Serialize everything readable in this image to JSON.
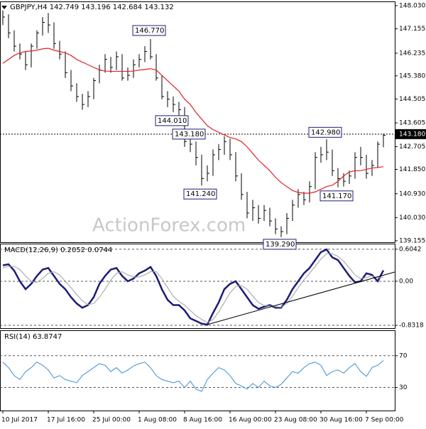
{
  "chart_data": [
    {
      "type": "ohlc",
      "title": "GBPJPY,H4 142.749 143.196 142.684 143.132",
      "watermark": "ActionForex.com",
      "ylim": [
        139.1,
        148.19
      ],
      "yticks": [
        {
          "value": 148.03,
          "label": "148.030"
        },
        147.155,
        146.235,
        {
          "value": 145.38,
          "label": "145.380"
        },
        144.505,
        143.605,
        142.705,
        {
          "value": 141.85,
          "label": "141.850"
        },
        {
          "value": 140.93,
          "label": "140.930"
        },
        {
          "value": 140.03,
          "label": "140.030"
        },
        139.155
      ],
      "last_price": {
        "value": 143.18,
        "label": "143.180"
      },
      "color": "#000000",
      "high": [
        147.85,
        147.7,
        147.1,
        146.6,
        146.3,
        146.6,
        147.1,
        147.6,
        147.75,
        147.4,
        146.7,
        146.3,
        145.6,
        145.1,
        144.7,
        144.8,
        145.3,
        145.8,
        146.2,
        146.1,
        146.3,
        146.2,
        145.7,
        146.0,
        146.2,
        146.5,
        146.77,
        146.2,
        145.4,
        144.8,
        144.6,
        144.4,
        144.2,
        143.18,
        142.9,
        142.4,
        142.0,
        142.6,
        142.8,
        143.1,
        143.0,
        142.5,
        141.7,
        141.0,
        140.7,
        140.5,
        140.5,
        140.4,
        140.0,
        139.7,
        140.2,
        140.7,
        141.1,
        141.0,
        141.4,
        142.5,
        142.7,
        142.98,
        142.6,
        141.9,
        141.7,
        141.8,
        142.5,
        142.7,
        142.4,
        142.2,
        142.9,
        143.196
      ],
      "low": [
        147.3,
        146.8,
        146.3,
        146.0,
        145.6,
        145.7,
        146.4,
        146.9,
        147.0,
        146.4,
        146.0,
        145.3,
        144.8,
        144.4,
        144.1,
        144.2,
        144.5,
        145.1,
        145.5,
        145.5,
        145.6,
        145.2,
        145.2,
        145.3,
        145.7,
        145.9,
        146.0,
        145.2,
        144.5,
        144.2,
        144.01,
        143.8,
        142.7,
        142.5,
        142.0,
        141.24,
        141.4,
        141.6,
        142.2,
        142.4,
        142.2,
        141.4,
        140.7,
        140.0,
        139.9,
        139.8,
        139.9,
        139.7,
        139.4,
        139.29,
        139.4,
        139.9,
        140.4,
        140.5,
        140.6,
        141.1,
        142.1,
        142.2,
        141.6,
        141.17,
        141.2,
        141.3,
        141.5,
        142.0,
        141.5,
        141.6,
        141.9,
        142.684
      ],
      "close": [
        147.6,
        147.0,
        146.5,
        146.2,
        145.8,
        146.5,
        147.0,
        147.4,
        147.3,
        146.6,
        146.2,
        145.5,
        145.0,
        144.6,
        144.3,
        144.6,
        145.2,
        145.6,
        146.0,
        145.7,
        146.1,
        145.3,
        145.4,
        145.8,
        146.0,
        146.3,
        146.1,
        145.3,
        144.6,
        144.5,
        144.3,
        144.1,
        142.9,
        142.8,
        142.3,
        141.5,
        141.7,
        142.4,
        142.6,
        142.9,
        142.4,
        141.6,
        140.9,
        140.2,
        140.4,
        140.0,
        140.3,
        139.9,
        139.6,
        139.5,
        140.0,
        140.5,
        140.9,
        140.7,
        141.2,
        142.3,
        142.4,
        142.5,
        141.8,
        141.5,
        141.4,
        141.6,
        142.3,
        142.3,
        141.7,
        142.0,
        142.8,
        143.132
      ],
      "ma_color": "#e0202a",
      "ma_values": [
        145.85,
        146.0,
        146.15,
        146.25,
        146.3,
        146.32,
        146.35,
        146.4,
        146.42,
        146.35,
        146.3,
        146.25,
        146.15,
        146.0,
        145.9,
        145.8,
        145.7,
        145.6,
        145.56,
        145.55,
        145.55,
        145.55,
        145.55,
        145.56,
        145.6,
        145.62,
        145.65,
        145.6,
        145.4,
        145.2,
        145.0,
        144.8,
        144.5,
        144.3,
        144.0,
        143.75,
        143.5,
        143.35,
        143.25,
        143.15,
        143.05,
        143.0,
        142.9,
        142.7,
        142.45,
        142.2,
        142.0,
        141.8,
        141.55,
        141.35,
        141.2,
        141.05,
        140.98,
        140.95,
        140.95,
        141.0,
        141.1,
        141.2,
        141.25,
        141.4,
        141.6,
        141.75,
        141.8,
        141.8,
        141.85,
        141.9,
        141.92,
        141.95
      ],
      "annotations": [
        "146.770",
        "144.010",
        "143.180",
        "141.240",
        "139.290",
        "142.980",
        "141.170"
      ]
    },
    {
      "type": "line",
      "title": "MACD(12,26,9) 0.2052 0.0744",
      "ylim": [
        -0.885,
        0.71
      ],
      "yticks": [
        0.6042,
        {
          "value": 0,
          "label": "0.00"
        },
        -0.8318
      ],
      "series": [
        {
          "color": "#1c1c78",
          "values": [
            0.3,
            0.32,
            0.2,
            0.0,
            -0.15,
            -0.05,
            0.1,
            0.22,
            0.25,
            0.1,
            -0.05,
            -0.15,
            -0.3,
            -0.42,
            -0.5,
            -0.45,
            -0.3,
            -0.05,
            0.1,
            0.22,
            0.25,
            0.1,
            0.0,
            0.05,
            0.15,
            0.2,
            0.27,
            0.1,
            -0.15,
            -0.35,
            -0.45,
            -0.45,
            -0.55,
            -0.7,
            -0.75,
            -0.8,
            -0.82,
            -0.6,
            -0.4,
            -0.15,
            -0.05,
            0.0,
            -0.15,
            -0.3,
            -0.45,
            -0.52,
            -0.48,
            -0.45,
            -0.5,
            -0.5,
            -0.35,
            -0.15,
            0.0,
            0.15,
            0.25,
            0.4,
            0.55,
            0.6,
            0.45,
            0.4,
            0.25,
            0.1,
            -0.02,
            0.0,
            0.15,
            0.12,
            0.0,
            0.2052
          ]
        },
        {
          "color": "#a0a0a0",
          "values": [
            0.25,
            0.28,
            0.28,
            0.22,
            0.1,
            0.0,
            -0.02,
            0.05,
            0.15,
            0.18,
            0.12,
            0.0,
            -0.12,
            -0.25,
            -0.37,
            -0.44,
            -0.42,
            -0.3,
            -0.15,
            0.02,
            0.15,
            0.18,
            0.12,
            0.08,
            0.08,
            0.12,
            0.18,
            0.18,
            0.05,
            -0.12,
            -0.28,
            -0.38,
            -0.45,
            -0.55,
            -0.65,
            -0.72,
            -0.78,
            -0.72,
            -0.58,
            -0.4,
            -0.22,
            -0.1,
            -0.08,
            -0.15,
            -0.28,
            -0.4,
            -0.46,
            -0.47,
            -0.48,
            -0.49,
            -0.42,
            -0.28,
            -0.12,
            0.02,
            0.15,
            0.28,
            0.42,
            0.52,
            0.52,
            0.47,
            0.38,
            0.25,
            0.12,
            0.05,
            0.07,
            0.1,
            0.07,
            0.0744
          ]
        }
      ]
    },
    {
      "type": "line",
      "title": "RSI(14) 63.8747",
      "ylim": [
        1,
        102
      ],
      "yticks": [
        70,
        30
      ],
      "series": [
        {
          "color": "#3a8fd4",
          "values": [
            62,
            55,
            45,
            40,
            50,
            55,
            62,
            58,
            52,
            42,
            45,
            40,
            38,
            36,
            45,
            50,
            55,
            60,
            58,
            50,
            55,
            48,
            52,
            57,
            60,
            62,
            55,
            45,
            40,
            38,
            36,
            38,
            30,
            38,
            28,
            25,
            40,
            48,
            55,
            52,
            45,
            35,
            32,
            28,
            35,
            30,
            38,
            32,
            30,
            34,
            42,
            50,
            48,
            55,
            60,
            62,
            58,
            45,
            50,
            52,
            48,
            55,
            60,
            50,
            44,
            55,
            58,
            63.8747
          ]
        }
      ],
      "categories": [
        "10 Jul 2017",
        null,
        null,
        null,
        null,
        null,
        null,
        null,
        "17 Jul 16:00",
        null,
        null,
        null,
        null,
        null,
        null,
        null,
        "25 Jul 00:00",
        null,
        null,
        null,
        null,
        null,
        null,
        null,
        "1 Aug 08:00",
        null,
        null,
        null,
        null,
        null,
        null,
        null,
        "8 Aug 16:00",
        null,
        null,
        null,
        null,
        null,
        null,
        null,
        "16 Aug 00:00",
        null,
        null,
        null,
        null,
        null,
        null,
        null,
        "23 Aug 08:00",
        null,
        null,
        null,
        null,
        null,
        null,
        null,
        "30 Aug 16:00",
        null,
        null,
        null,
        null,
        null,
        null,
        null,
        "7 Sep 00:00",
        null,
        null,
        null
      ]
    }
  ]
}
